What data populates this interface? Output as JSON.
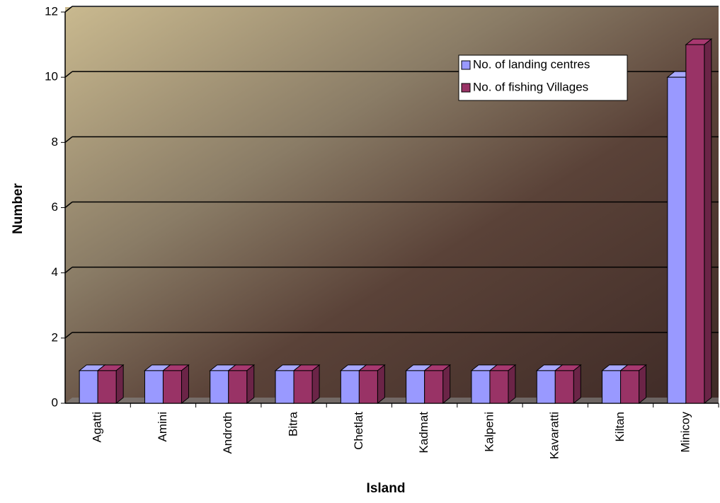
{
  "chart_data": {
    "type": "bar3d",
    "x_label": "Island",
    "y_label": "Number",
    "categories": [
      "Agatti",
      "Amini",
      "Androth",
      "Bitra",
      "Chetlat",
      "Kadmat",
      "Kalpeni",
      "Kavaratti",
      "Kiltan",
      "Minicoy"
    ],
    "series": [
      {
        "name": "No. of landing centres",
        "color": "#9999ff",
        "values": [
          1,
          1,
          1,
          1,
          1,
          1,
          1,
          1,
          1,
          10
        ]
      },
      {
        "name": "No. of fishing Villages",
        "color": "#993366",
        "values": [
          1,
          1,
          1,
          1,
          1,
          1,
          1,
          1,
          1,
          11
        ]
      }
    ],
    "ylim": [
      0,
      12
    ],
    "yticks": [
      0,
      2,
      4,
      6,
      8,
      10,
      12
    ],
    "grid": true,
    "legend": "top-right"
  }
}
